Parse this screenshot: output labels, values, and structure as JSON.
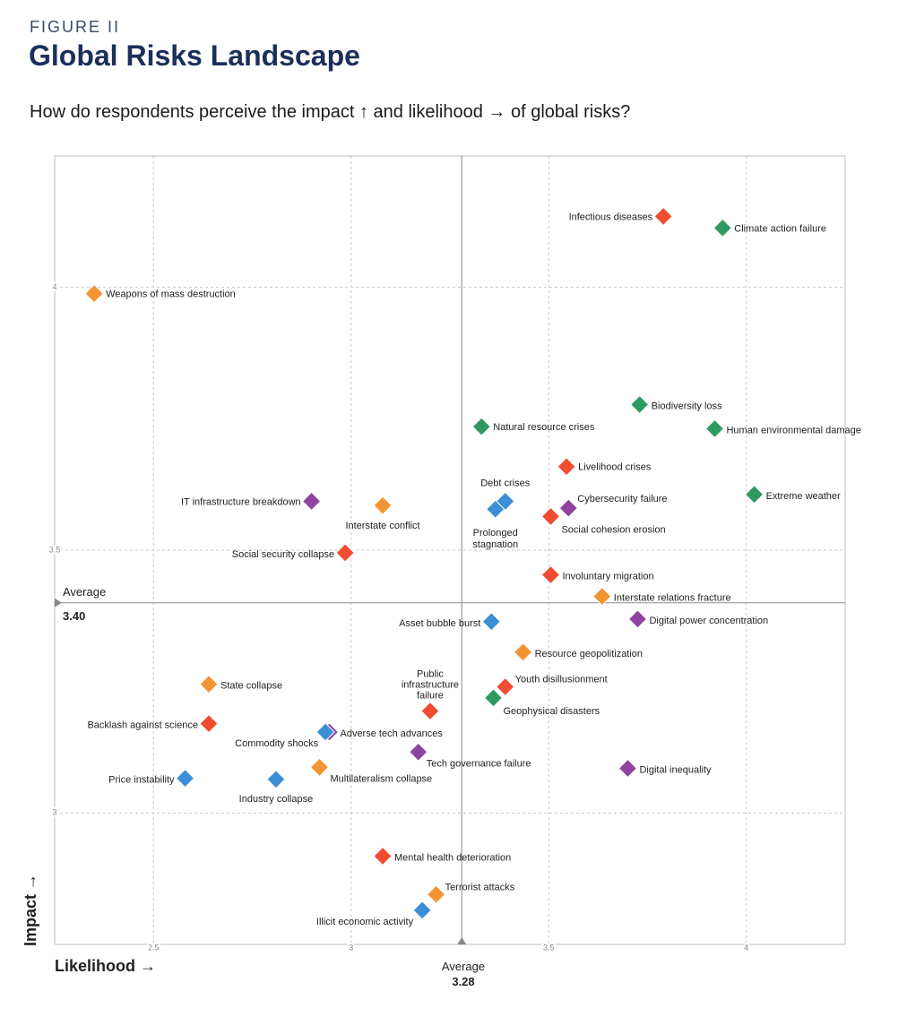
{
  "header": {
    "figure_label": "FIGURE II",
    "title": "Global Risks Landscape",
    "subtitle": "How do respondents perceive the impact ↑ and likelihood → of global risks?"
  },
  "colors": {
    "economic": "#3a8fd6",
    "environmental": "#2e9a61",
    "geopolitical": "#f39433",
    "societal": "#f04c32",
    "technological": "#8e44a0",
    "grid": "#c8c8c8",
    "frame": "#bdbdbd",
    "average_line": "#9a9a9a"
  },
  "chart_data": {
    "type": "scatter",
    "xlabel": "Likelihood →",
    "ylabel": "Impact →",
    "xlim": [
      2.25,
      4.25
    ],
    "ylim": [
      2.75,
      4.25
    ],
    "x_ticks": [
      "2.5",
      "3",
      "3.5",
      "4"
    ],
    "y_ticks": [
      "3",
      "3.5",
      "4"
    ],
    "average_x": {
      "label": "Average",
      "value": "3.28",
      "x": 3.28
    },
    "average_y": {
      "label": "Average",
      "value": "3.40",
      "y": 3.4
    },
    "points": [
      {
        "label": "Infectious diseases",
        "x": 3.79,
        "y": 4.135,
        "category": "societal",
        "lx": -12,
        "ly": 4,
        "anchor": "end"
      },
      {
        "label": "Climate action failure",
        "x": 3.94,
        "y": 4.113,
        "category": "environmental",
        "lx": 13,
        "ly": 4,
        "anchor": "start"
      },
      {
        "label": "Weapons of mass destruction",
        "x": 2.35,
        "y": 3.988,
        "category": "geopolitical",
        "lx": 13,
        "ly": 4,
        "anchor": "start"
      },
      {
        "label": "Biodiversity loss",
        "x": 3.73,
        "y": 3.777,
        "category": "environmental",
        "lx": 13,
        "ly": 5,
        "anchor": "start"
      },
      {
        "label": "Natural resource crises",
        "x": 3.33,
        "y": 3.735,
        "category": "environmental",
        "lx": 13,
        "ly": 4,
        "anchor": "start"
      },
      {
        "label": "Human environmental damage",
        "x": 3.92,
        "y": 3.731,
        "category": "environmental",
        "lx": 13,
        "ly": 5,
        "anchor": "start"
      },
      {
        "label": "Livelihood crises",
        "x": 3.545,
        "y": 3.659,
        "category": "societal",
        "lx": 13,
        "ly": 4,
        "anchor": "start"
      },
      {
        "label": "Extreme weather",
        "x": 4.02,
        "y": 3.606,
        "category": "environmental",
        "lx": 13,
        "ly": 5,
        "anchor": "start"
      },
      {
        "label": "Debt crises",
        "x": 3.39,
        "y": 3.593,
        "category": "economic",
        "lx": 0,
        "ly": -17,
        "anchor": "middle"
      },
      {
        "label": "Cybersecurity failure",
        "x": 3.55,
        "y": 3.58,
        "category": "technological",
        "lx": 10,
        "ly": -7,
        "anchor": "start"
      },
      {
        "label": "IT infrastructure breakdown",
        "x": 2.9,
        "y": 3.593,
        "category": "technological",
        "lx": -12,
        "ly": 4,
        "anchor": "end"
      },
      {
        "label": "Interstate conflict",
        "x": 3.08,
        "y": 3.585,
        "category": "geopolitical",
        "lx": 0,
        "ly": 26,
        "anchor": "middle"
      },
      {
        "label": "Prolonged",
        "x": 3.365,
        "y": 3.578,
        "category": "economic",
        "lx": 0,
        "ly": 30,
        "anchor": "middle"
      },
      {
        "label": "Social cohesion erosion",
        "x": 3.505,
        "y": 3.564,
        "category": "societal",
        "lx": 12,
        "ly": 18,
        "anchor": "start"
      },
      {
        "label": "Social security collapse",
        "x": 2.985,
        "y": 3.495,
        "category": "societal",
        "lx": -12,
        "ly": 5,
        "anchor": "end"
      },
      {
        "label": "Involuntary migration",
        "x": 3.505,
        "y": 3.453,
        "category": "societal",
        "lx": 13,
        "ly": 5,
        "anchor": "start"
      },
      {
        "label": "Interstate relations fracture",
        "x": 3.635,
        "y": 3.412,
        "category": "geopolitical",
        "lx": 13,
        "ly": 5,
        "anchor": "start"
      },
      {
        "label": "Digital power concentration",
        "x": 3.725,
        "y": 3.369,
        "category": "technological",
        "lx": 13,
        "ly": 5,
        "anchor": "start"
      },
      {
        "label": "Asset bubble burst",
        "x": 3.355,
        "y": 3.364,
        "category": "economic",
        "lx": -12,
        "ly": 5,
        "anchor": "end"
      },
      {
        "label": "Resource geopolitization",
        "x": 3.435,
        "y": 3.306,
        "category": "geopolitical",
        "lx": 13,
        "ly": 5,
        "anchor": "start"
      },
      {
        "label": "State collapse",
        "x": 2.64,
        "y": 3.245,
        "category": "geopolitical",
        "lx": 13,
        "ly": 5,
        "anchor": "start"
      },
      {
        "label": "Youth disillusionment",
        "x": 3.39,
        "y": 3.24,
        "category": "societal",
        "lx": 11,
        "ly": -5,
        "anchor": "start"
      },
      {
        "label": "Geophysical disasters",
        "x": 3.36,
        "y": 3.219,
        "category": "environmental",
        "lx": 11,
        "ly": 18,
        "anchor": "start"
      },
      {
        "label": "Public",
        "x": 3.2,
        "y": 3.194,
        "category": "societal",
        "lx": 0,
        "ly": -38,
        "anchor": "middle"
      },
      {
        "label": "Backlash against science",
        "x": 2.64,
        "y": 3.17,
        "category": "societal",
        "lx": -12,
        "ly": 5,
        "anchor": "end"
      },
      {
        "label": "Adverse tech advances",
        "x": 2.945,
        "y": 3.154,
        "category": "technological",
        "lx": 12,
        "ly": 5,
        "anchor": "start"
      },
      {
        "label": "Commodity shocks",
        "x": 2.935,
        "y": 3.154,
        "category": "economic",
        "lx": -8,
        "ly": 16,
        "anchor": "end"
      },
      {
        "label": "Tech governance failure",
        "x": 3.17,
        "y": 3.116,
        "category": "technological",
        "lx": 9,
        "ly": 16,
        "anchor": "start"
      },
      {
        "label": "Multilateralism collapse",
        "x": 2.92,
        "y": 3.087,
        "category": "geopolitical",
        "lx": 12,
        "ly": 16,
        "anchor": "start"
      },
      {
        "label": "Digital inequality",
        "x": 3.7,
        "y": 3.085,
        "category": "technological",
        "lx": 13,
        "ly": 5,
        "anchor": "start"
      },
      {
        "label": "Price instability",
        "x": 2.58,
        "y": 3.066,
        "category": "economic",
        "lx": -12,
        "ly": 5,
        "anchor": "end"
      },
      {
        "label": "Industry collapse",
        "x": 2.81,
        "y": 3.064,
        "category": "economic",
        "lx": 0,
        "ly": 25,
        "anchor": "middle"
      },
      {
        "label": "Mental health deterioration",
        "x": 3.08,
        "y": 2.918,
        "category": "societal",
        "lx": 13,
        "ly": 5,
        "anchor": "start"
      },
      {
        "label": "Terrorist attacks",
        "x": 3.215,
        "y": 2.845,
        "category": "geopolitical",
        "lx": 10,
        "ly": -5,
        "anchor": "start"
      },
      {
        "label": "Illicit economic activity",
        "x": 3.18,
        "y": 2.815,
        "category": "economic",
        "lx": -10,
        "ly": 16,
        "anchor": "end"
      }
    ],
    "extra_label_lines": [
      {
        "text": "stagnation",
        "ref": "Prolonged",
        "lx": 0,
        "ly": 43,
        "anchor": "middle"
      },
      {
        "text": "infrastructure",
        "ref": "Public",
        "lx": 0,
        "ly": -26,
        "anchor": "middle"
      },
      {
        "text": "failure",
        "ref": "Public",
        "lx": 0,
        "ly": -14,
        "anchor": "middle"
      }
    ]
  }
}
